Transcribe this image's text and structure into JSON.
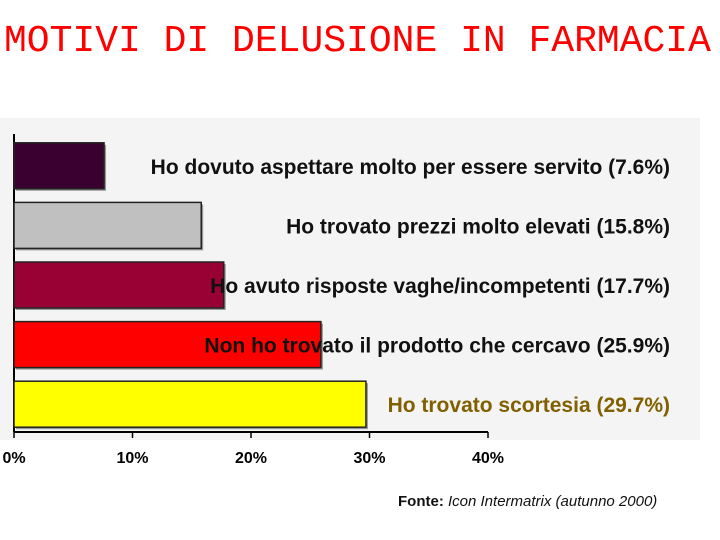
{
  "title": "MOTIVI DI DELUSIONE IN FARMACIA",
  "source": {
    "label": "Fonte:",
    "text": "Icon Intermatrix (autunno 2000)"
  },
  "chart_data": {
    "type": "bar",
    "orientation": "horizontal",
    "categories": [
      "Ho dovuto aspettare molto per essere servito",
      "Ho trovato prezzi molto elevati",
      "Ho avuto risposte vaghe/incompetenti",
      "Non ho trovato il prodotto che cercavo",
      "Ho trovato scortesia"
    ],
    "values": [
      7.6,
      15.8,
      17.7,
      25.9,
      29.7
    ],
    "value_labels": [
      "(7.6%)",
      "(15.8%)",
      "(17.7%)",
      "(25.9%)",
      "(29.7%)"
    ],
    "bar_colors": [
      "#3a0030",
      "#c0c0c0",
      "#990033",
      "#ff0000",
      "#ffff00"
    ],
    "label_colors": [
      "#111111",
      "#111111",
      "#111111",
      "#111111",
      "#806000"
    ],
    "xlim": [
      0,
      40
    ],
    "ticks": [
      "0%",
      "10%",
      "20%",
      "30%",
      "40%"
    ],
    "grid": false,
    "legend": "none"
  }
}
